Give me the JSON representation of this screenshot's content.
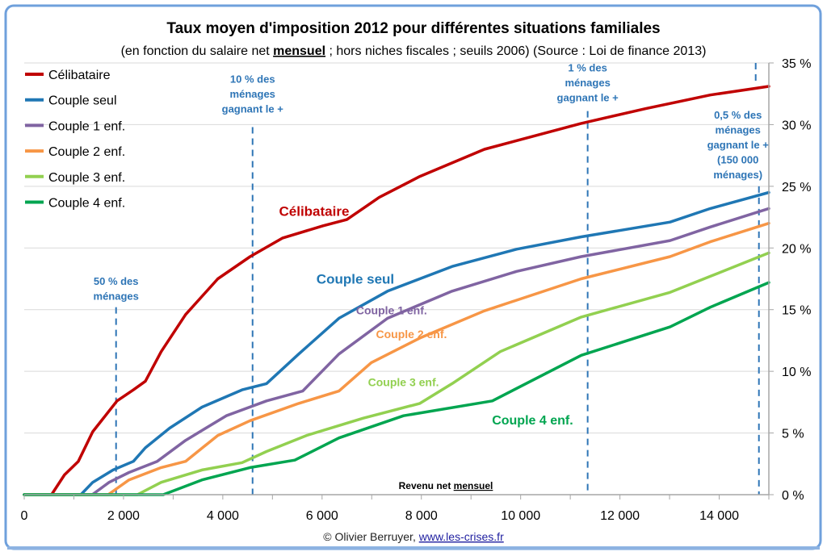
{
  "chart_data": {
    "type": "line",
    "title": "Taux moyen d'imposition 2012 pour différentes situations familiales",
    "subtitle_parts": [
      "(en fonction du salaire net ",
      "mensuel",
      " ; hors niches fiscales ; seuils 2006) (Source : Loi de finance 2013)"
    ],
    "xlabel_parts": [
      "Revenu net ",
      "mensuel"
    ],
    "ylabel": "",
    "xlim": [
      0,
      15000
    ],
    "ylim": [
      0,
      35
    ],
    "x_ticks": [
      "0",
      "2 000",
      "4 000",
      "6 000",
      "8 000",
      "10 000",
      "12 000",
      "14 000"
    ],
    "x_tick_values": [
      0,
      2000,
      4000,
      6000,
      8000,
      10000,
      12000,
      14000
    ],
    "y_ticks": [
      "0 %",
      "5 %",
      "10 %",
      "15 %",
      "20 %",
      "25 %",
      "30 %",
      "35 %"
    ],
    "y_tick_values": [
      0,
      5,
      10,
      15,
      20,
      25,
      30,
      35
    ],
    "y_axis_side": "right",
    "grid": "horizontal",
    "legend_placement": "top-left",
    "series": [
      {
        "name": "Célibataire",
        "color": "#C00000",
        "label": "Célibataire",
        "label_at": [
          5840,
          23.0
        ],
        "points": [
          [
            0,
            0
          ],
          [
            550,
            0
          ],
          [
            810,
            1.6
          ],
          [
            1090,
            2.7
          ],
          [
            1380,
            5.1
          ],
          [
            1870,
            7.6
          ],
          [
            2200,
            8.5
          ],
          [
            2440,
            9.2
          ],
          [
            2760,
            11.6
          ],
          [
            3250,
            14.6
          ],
          [
            3900,
            17.5
          ],
          [
            4550,
            19.3
          ],
          [
            5200,
            20.8
          ],
          [
            6020,
            21.8
          ],
          [
            6500,
            22.3
          ],
          [
            7150,
            24.1
          ],
          [
            7970,
            25.8
          ],
          [
            9270,
            28.0
          ],
          [
            11220,
            30.1
          ],
          [
            12520,
            31.3
          ],
          [
            13820,
            32.4
          ],
          [
            15000,
            33.1
          ]
        ]
      },
      {
        "name": "Couple seul",
        "color": "#1F77B4",
        "label": "Couple seul",
        "label_at": [
          6670,
          17.5
        ],
        "points": [
          [
            0,
            0
          ],
          [
            1140,
            0
          ],
          [
            1380,
            1.0
          ],
          [
            1790,
            2.0
          ],
          [
            2200,
            2.7
          ],
          [
            2440,
            3.8
          ],
          [
            2930,
            5.4
          ],
          [
            3580,
            7.1
          ],
          [
            4390,
            8.5
          ],
          [
            4880,
            9.0
          ],
          [
            5530,
            11.4
          ],
          [
            6340,
            14.3
          ],
          [
            7320,
            16.5
          ],
          [
            8620,
            18.5
          ],
          [
            9920,
            19.9
          ],
          [
            11220,
            20.9
          ],
          [
            13010,
            22.1
          ],
          [
            13820,
            23.2
          ],
          [
            15000,
            24.5
          ]
        ]
      },
      {
        "name": "Couple 1 enf.",
        "color": "#8064A2",
        "label": "Couple 1 enf.",
        "label_at": [
          7400,
          15.0
        ],
        "points": [
          [
            0,
            0
          ],
          [
            1370,
            0
          ],
          [
            1710,
            1.0
          ],
          [
            2110,
            1.8
          ],
          [
            2680,
            2.7
          ],
          [
            3250,
            4.4
          ],
          [
            4070,
            6.4
          ],
          [
            4880,
            7.6
          ],
          [
            5610,
            8.4
          ],
          [
            6340,
            11.4
          ],
          [
            7320,
            14.3
          ],
          [
            8620,
            16.5
          ],
          [
            9920,
            18.1
          ],
          [
            11220,
            19.3
          ],
          [
            13010,
            20.6
          ],
          [
            13820,
            21.7
          ],
          [
            15000,
            23.2
          ]
        ]
      },
      {
        "name": "Couple 2 enf.",
        "color": "#F79646",
        "label": "Couple 2 enf.",
        "label_at": [
          7800,
          13.1
        ],
        "points": [
          [
            0,
            0
          ],
          [
            1690,
            0
          ],
          [
            2110,
            1.2
          ],
          [
            2760,
            2.2
          ],
          [
            3250,
            2.7
          ],
          [
            3900,
            4.8
          ],
          [
            4550,
            6.0
          ],
          [
            5530,
            7.4
          ],
          [
            6340,
            8.4
          ],
          [
            6990,
            10.7
          ],
          [
            7970,
            12.7
          ],
          [
            9270,
            14.9
          ],
          [
            11220,
            17.5
          ],
          [
            13010,
            19.3
          ],
          [
            13820,
            20.5
          ],
          [
            15000,
            22.0
          ]
        ]
      },
      {
        "name": "Couple 3 enf.",
        "color": "#92D050",
        "label": "Couple 3 enf.",
        "label_at": [
          7640,
          9.2
        ],
        "points": [
          [
            0,
            0
          ],
          [
            2280,
            0
          ],
          [
            2760,
            1.0
          ],
          [
            3580,
            2.0
          ],
          [
            4390,
            2.6
          ],
          [
            4880,
            3.5
          ],
          [
            5690,
            4.8
          ],
          [
            6830,
            6.2
          ],
          [
            7970,
            7.4
          ],
          [
            8620,
            9.0
          ],
          [
            9590,
            11.6
          ],
          [
            11220,
            14.4
          ],
          [
            13010,
            16.4
          ],
          [
            13820,
            17.7
          ],
          [
            15000,
            19.6
          ]
        ]
      },
      {
        "name": "Couple 4 enf.",
        "color": "#00A550",
        "label": "Couple 4 enf.",
        "label_at": [
          10240,
          6.1
        ],
        "points": [
          [
            0,
            0
          ],
          [
            2800,
            0
          ],
          [
            3580,
            1.2
          ],
          [
            4550,
            2.2
          ],
          [
            5450,
            2.8
          ],
          [
            6340,
            4.6
          ],
          [
            7640,
            6.4
          ],
          [
            9430,
            7.6
          ],
          [
            11220,
            11.3
          ],
          [
            13010,
            13.6
          ],
          [
            13820,
            15.2
          ],
          [
            15000,
            17.2
          ]
        ]
      }
    ],
    "annotations": [
      {
        "x": 1850,
        "lines": [
          "50 % des",
          "ménages"
        ],
        "text_y": 17.0,
        "line_top": 15.2
      },
      {
        "x": 4600,
        "lines": [
          "10 % des",
          "ménages",
          "gagnant le +"
        ],
        "text_y": 33.4,
        "line_top": 29.8
      },
      {
        "x": 11350,
        "lines": [
          "1 % des",
          "ménages",
          "gagnant le +"
        ],
        "text_y": 34.3,
        "line_top": 31.1
      },
      {
        "x": 14800,
        "lines": [
          "0,5 % des",
          "ménages",
          "gagnant le +",
          "(150 000",
          "ménages)"
        ],
        "text_y": 30.5,
        "line_top": 25.0,
        "line_top2": 35,
        "line_bottom2": 33.3
      }
    ],
    "annotation_color": "#2E75B6",
    "footer_text": "© Olivier Berruyer, ",
    "footer_link": "www.les-crises.fr"
  }
}
